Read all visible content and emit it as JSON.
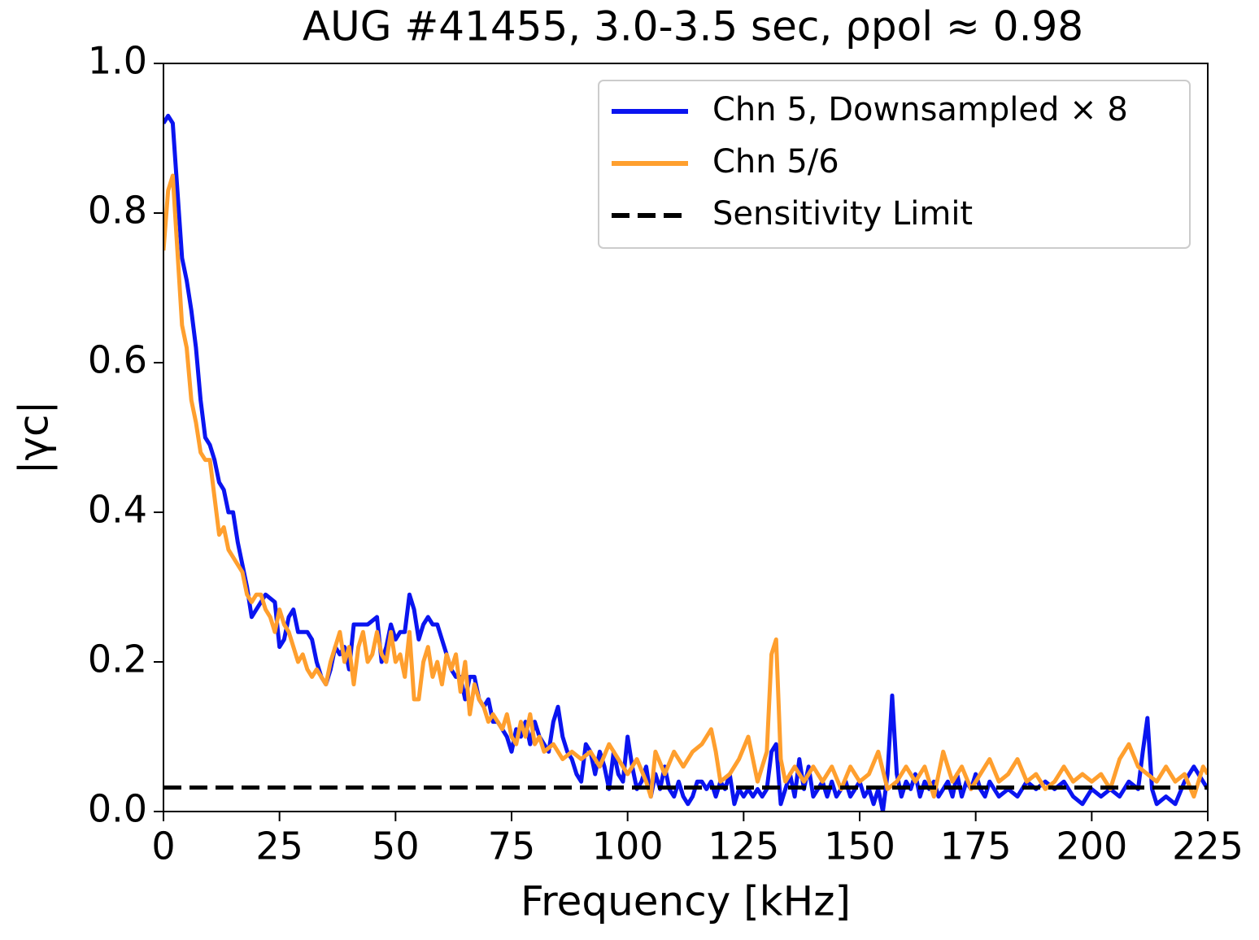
{
  "chart_data": {
    "type": "line",
    "title": "AUG #41455, 3.0-3.5 sec, ρpol ≈ 0.98",
    "x_label": "Frequency [kHz]",
    "y_label": "|γc|",
    "xlim": [
      0,
      225
    ],
    "ylim": [
      0,
      1
    ],
    "xticks": [
      0,
      25,
      50,
      75,
      100,
      125,
      150,
      175,
      200,
      225
    ],
    "yticks": [
      {
        "value": 0,
        "label": "0.0"
      },
      {
        "value": 0.2,
        "label": "0.2"
      },
      {
        "value": 0.4,
        "label": "0.4"
      },
      {
        "value": 0.6,
        "label": "0.6"
      },
      {
        "value": 0.8,
        "label": "0.8"
      },
      {
        "value": 1,
        "label": "1.0"
      }
    ],
    "legend": "upper right",
    "series": [
      {
        "name": "Chn 5, Downsampled × 8",
        "color": "#0a14f0",
        "dash": false,
        "x": [
          0,
          1,
          2,
          3,
          4,
          5,
          6,
          7,
          8,
          9,
          10,
          11,
          12,
          13,
          14,
          15,
          16,
          17,
          18,
          19,
          20,
          21,
          22,
          24,
          25,
          26,
          27,
          28,
          29,
          31,
          32,
          33,
          34,
          35,
          36,
          37,
          38,
          39,
          40,
          41,
          42,
          44,
          46,
          47,
          48,
          49,
          50,
          51,
          52,
          53,
          54,
          55,
          56,
          57,
          58,
          59,
          60,
          61,
          62,
          63,
          64,
          65,
          66,
          67,
          68,
          69,
          70,
          71,
          72,
          73,
          74,
          75,
          76,
          77,
          78,
          79,
          80,
          81,
          82,
          83,
          84,
          85,
          86,
          87,
          88,
          89,
          90,
          91,
          92,
          93,
          94,
          95,
          96,
          97,
          98,
          99,
          100,
          101,
          102,
          103,
          104,
          105,
          106,
          107,
          108,
          109,
          110,
          111,
          112,
          113,
          114,
          115,
          116,
          117,
          118,
          119,
          120,
          121,
          122,
          123,
          124,
          125,
          126,
          127,
          128,
          129,
          130,
          131,
          132,
          133,
          134,
          135,
          136,
          137,
          138,
          139,
          140,
          141,
          142,
          143,
          144,
          145,
          146,
          147,
          148,
          149,
          150,
          151,
          152,
          153,
          154,
          155,
          156,
          157,
          158,
          159,
          160,
          161,
          162,
          163,
          164,
          165,
          166,
          167,
          168,
          169,
          170,
          171,
          172,
          173,
          174,
          175,
          176,
          177,
          178,
          179,
          180,
          182,
          184,
          186,
          188,
          190,
          192,
          194,
          196,
          198,
          200,
          202,
          204,
          206,
          208,
          210,
          211,
          212,
          213,
          214,
          216,
          218,
          220,
          222,
          224,
          225
        ],
        "values": [
          0.92,
          0.93,
          0.92,
          0.83,
          0.74,
          0.71,
          0.67,
          0.62,
          0.55,
          0.5,
          0.49,
          0.47,
          0.44,
          0.43,
          0.4,
          0.4,
          0.36,
          0.33,
          0.3,
          0.26,
          0.27,
          0.28,
          0.29,
          0.28,
          0.22,
          0.23,
          0.26,
          0.27,
          0.24,
          0.24,
          0.23,
          0.2,
          0.18,
          0.17,
          0.19,
          0.22,
          0.21,
          0.22,
          0.19,
          0.25,
          0.25,
          0.25,
          0.26,
          0.2,
          0.22,
          0.25,
          0.23,
          0.24,
          0.24,
          0.29,
          0.27,
          0.23,
          0.25,
          0.26,
          0.25,
          0.25,
          0.23,
          0.21,
          0.19,
          0.18,
          0.18,
          0.15,
          0.18,
          0.18,
          0.15,
          0.14,
          0.15,
          0.12,
          0.12,
          0.11,
          0.1,
          0.08,
          0.11,
          0.1,
          0.12,
          0.09,
          0.12,
          0.1,
          0.09,
          0.08,
          0.12,
          0.14,
          0.1,
          0.08,
          0.07,
          0.05,
          0.04,
          0.09,
          0.08,
          0.05,
          0.08,
          0.06,
          0.03,
          0.08,
          0.05,
          0.04,
          0.1,
          0.06,
          0.03,
          0.04,
          0.06,
          0.02,
          0.05,
          0.03,
          0.06,
          0.03,
          0.02,
          0.04,
          0.02,
          0.01,
          0.02,
          0.04,
          0.04,
          0.03,
          0.04,
          0.02,
          0.04,
          0.03,
          0.05,
          0.01,
          0.03,
          0.02,
          0.03,
          0.02,
          0.03,
          0.02,
          0.03,
          0.08,
          0.09,
          0.01,
          0.03,
          0.05,
          0.02,
          0.07,
          0.03,
          0.06,
          0.02,
          0.03,
          0.04,
          0.02,
          0.04,
          0.02,
          0.03,
          0.04,
          0.02,
          0.03,
          0.04,
          0.02,
          0.03,
          0.01,
          0.03,
          0.0,
          0.05,
          0.155,
          0.05,
          0.02,
          0.04,
          0.03,
          0.05,
          0.02,
          0.04,
          0.03,
          0.04,
          0.02,
          0.03,
          0.04,
          0.02,
          0.05,
          0.02,
          0.04,
          0.03,
          0.05,
          0.03,
          0.02,
          0.04,
          0.03,
          0.02,
          0.03,
          0.02,
          0.04,
          0.03,
          0.04,
          0.03,
          0.04,
          0.02,
          0.01,
          0.03,
          0.02,
          0.03,
          0.02,
          0.04,
          0.03,
          0.08,
          0.125,
          0.03,
          0.01,
          0.02,
          0.01,
          0.04,
          0.06,
          0.04,
          0.03
        ]
      },
      {
        "name": "Chn 5/6",
        "color": "#ff9f2e",
        "dash": false,
        "x": [
          0,
          1,
          2,
          3,
          4,
          5,
          6,
          7,
          8,
          9,
          10,
          11,
          12,
          13,
          14,
          15,
          16,
          17,
          18,
          19,
          20,
          21,
          22,
          23,
          24,
          25,
          26,
          27,
          28,
          29,
          30,
          31,
          32,
          33,
          34,
          35,
          36,
          37,
          38,
          39,
          40,
          41,
          42,
          43,
          44,
          45,
          46,
          47,
          48,
          49,
          50,
          51,
          52,
          53,
          54,
          55,
          56,
          57,
          58,
          59,
          60,
          61,
          62,
          63,
          64,
          65,
          66,
          67,
          68,
          69,
          70,
          71,
          72,
          73,
          74,
          75,
          76,
          77,
          78,
          79,
          80,
          81,
          82,
          84,
          86,
          88,
          90,
          92,
          94,
          96,
          98,
          100,
          102,
          104,
          105,
          106,
          108,
          110,
          112,
          114,
          116,
          118,
          119,
          120,
          122,
          124,
          126,
          128,
          130,
          131,
          132,
          133,
          134,
          136,
          138,
          140,
          142,
          144,
          146,
          148,
          150,
          152,
          154,
          156,
          158,
          160,
          162,
          164,
          166,
          168,
          170,
          172,
          174,
          176,
          178,
          180,
          182,
          184,
          186,
          188,
          190,
          192,
          194,
          196,
          198,
          200,
          202,
          204,
          206,
          208,
          210,
          212,
          214,
          216,
          218,
          220,
          222,
          224,
          225
        ],
        "values": [
          0.75,
          0.83,
          0.85,
          0.75,
          0.65,
          0.62,
          0.55,
          0.52,
          0.48,
          0.47,
          0.47,
          0.42,
          0.37,
          0.38,
          0.35,
          0.34,
          0.33,
          0.32,
          0.29,
          0.28,
          0.29,
          0.29,
          0.27,
          0.26,
          0.24,
          0.27,
          0.25,
          0.24,
          0.22,
          0.2,
          0.21,
          0.19,
          0.18,
          0.19,
          0.18,
          0.17,
          0.2,
          0.22,
          0.24,
          0.2,
          0.22,
          0.17,
          0.22,
          0.24,
          0.2,
          0.21,
          0.24,
          0.21,
          0.2,
          0.24,
          0.2,
          0.21,
          0.18,
          0.24,
          0.15,
          0.15,
          0.2,
          0.22,
          0.18,
          0.2,
          0.17,
          0.21,
          0.19,
          0.21,
          0.16,
          0.2,
          0.13,
          0.17,
          0.15,
          0.14,
          0.12,
          0.13,
          0.12,
          0.11,
          0.13,
          0.1,
          0.09,
          0.12,
          0.1,
          0.13,
          0.09,
          0.1,
          0.08,
          0.09,
          0.07,
          0.08,
          0.07,
          0.08,
          0.06,
          0.09,
          0.07,
          0.05,
          0.07,
          0.04,
          0.02,
          0.08,
          0.05,
          0.08,
          0.06,
          0.08,
          0.09,
          0.11,
          0.08,
          0.04,
          0.05,
          0.07,
          0.1,
          0.04,
          0.08,
          0.21,
          0.23,
          0.07,
          0.04,
          0.06,
          0.04,
          0.06,
          0.04,
          0.06,
          0.03,
          0.06,
          0.04,
          0.05,
          0.08,
          0.03,
          0.04,
          0.06,
          0.04,
          0.06,
          0.02,
          0.08,
          0.04,
          0.06,
          0.03,
          0.05,
          0.07,
          0.04,
          0.05,
          0.07,
          0.04,
          0.05,
          0.03,
          0.04,
          0.06,
          0.04,
          0.05,
          0.04,
          0.05,
          0.03,
          0.07,
          0.09,
          0.06,
          0.05,
          0.04,
          0.06,
          0.04,
          0.05,
          0.02,
          0.06,
          0.05
        ]
      },
      {
        "name": "Sensitivity Limit",
        "color": "#000000",
        "dash": true,
        "x": [
          0,
          225
        ],
        "values": [
          0.032,
          0.032
        ]
      }
    ]
  }
}
